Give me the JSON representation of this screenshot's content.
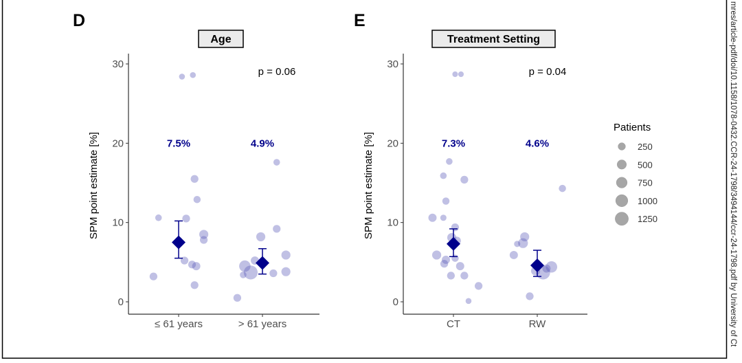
{
  "side_text": "mres/article-pdf/doi/10.1158/1078-0432.CCR-24-1798/3494144/ccr-24-1798.pdf by University of Ct",
  "colors": {
    "point": "#5a5ab8",
    "mean": "#00008B",
    "legend": "#a6a6a6"
  },
  "legend": {
    "title": "Patients",
    "sizes": [
      250,
      500,
      750,
      1000,
      1250
    ],
    "labels": [
      "250",
      "500",
      "750",
      "1000",
      "1250"
    ],
    "placement": "right"
  },
  "chart_data": [
    {
      "type": "scatter",
      "panel_letter": "D",
      "title": "Age",
      "ylabel": "SPM point estimate [%]",
      "ylim": [
        0,
        30
      ],
      "yticks": [
        "0",
        "10",
        "20",
        "30"
      ],
      "categories": [
        "≤ 61 years",
        "> 61 years"
      ],
      "p_value_text": "p = 0.06",
      "means": [
        {
          "label": "7.5%",
          "value": 7.5,
          "ci": [
            5.5,
            10.2
          ]
        },
        {
          "label": "4.9%",
          "value": 4.9,
          "ci": [
            3.5,
            6.7
          ]
        }
      ],
      "points": [
        {
          "cat": 0,
          "jitter": 0.04,
          "y": 28.4,
          "patients": 100
        },
        {
          "cat": 0,
          "jitter": 0.17,
          "y": 28.6,
          "patients": 100
        },
        {
          "cat": 0,
          "jitter": -0.24,
          "y": 10.6,
          "patients": 150
        },
        {
          "cat": 0,
          "jitter": 0.19,
          "y": 15.5,
          "patients": 250
        },
        {
          "cat": 0,
          "jitter": 0.22,
          "y": 12.9,
          "patients": 200
        },
        {
          "cat": 0,
          "jitter": 0.09,
          "y": 10.5,
          "patients": 250
        },
        {
          "cat": 0,
          "jitter": 0.3,
          "y": 8.5,
          "patients": 400
        },
        {
          "cat": 0,
          "jitter": 0.3,
          "y": 7.8,
          "patients": 250
        },
        {
          "cat": 0,
          "jitter": 0.07,
          "y": 5.2,
          "patients": 250
        },
        {
          "cat": 0,
          "jitter": 0.16,
          "y": 4.7,
          "patients": 250
        },
        {
          "cat": 0,
          "jitter": 0.21,
          "y": 4.5,
          "patients": 300
        },
        {
          "cat": 0,
          "jitter": -0.3,
          "y": 3.2,
          "patients": 250
        },
        {
          "cat": 0,
          "jitter": 0.19,
          "y": 2.1,
          "patients": 250
        },
        {
          "cat": 1,
          "jitter": 0.17,
          "y": 17.6,
          "patients": 150
        },
        {
          "cat": 1,
          "jitter": 0.17,
          "y": 9.2,
          "patients": 250
        },
        {
          "cat": 1,
          "jitter": -0.02,
          "y": 8.2,
          "patients": 400
        },
        {
          "cat": 1,
          "jitter": 0.28,
          "y": 5.9,
          "patients": 400
        },
        {
          "cat": 1,
          "jitter": -0.09,
          "y": 5.2,
          "patients": 300
        },
        {
          "cat": 1,
          "jitter": -0.21,
          "y": 4.5,
          "patients": 750
        },
        {
          "cat": 1,
          "jitter": -0.14,
          "y": 3.7,
          "patients": 1250
        },
        {
          "cat": 1,
          "jitter": -0.23,
          "y": 3.4,
          "patients": 150
        },
        {
          "cat": 1,
          "jitter": 0.13,
          "y": 3.6,
          "patients": 250
        },
        {
          "cat": 1,
          "jitter": 0.28,
          "y": 3.8,
          "patients": 400
        },
        {
          "cat": 1,
          "jitter": -0.3,
          "y": 0.5,
          "patients": 250
        }
      ]
    },
    {
      "type": "scatter",
      "panel_letter": "E",
      "title": "Treatment Setting",
      "ylabel": "SPM point estimate [%]",
      "ylim": [
        0,
        30
      ],
      "yticks": [
        "0",
        "10",
        "20",
        "30"
      ],
      "categories": [
        "CT",
        "RW"
      ],
      "p_value_text": "p = 0.04",
      "means": [
        {
          "label": "7.3%",
          "value": 7.3,
          "ci": [
            5.7,
            9.2
          ]
        },
        {
          "label": "4.6%",
          "value": 4.6,
          "ci": [
            3.2,
            6.5
          ]
        }
      ],
      "points": [
        {
          "cat": 0,
          "jitter": 0.02,
          "y": 28.7,
          "patients": 80
        },
        {
          "cat": 0,
          "jitter": 0.09,
          "y": 28.7,
          "patients": 80
        },
        {
          "cat": 0,
          "jitter": -0.05,
          "y": 17.7,
          "patients": 150
        },
        {
          "cat": 0,
          "jitter": -0.12,
          "y": 15.9,
          "patients": 150
        },
        {
          "cat": 0,
          "jitter": 0.13,
          "y": 15.4,
          "patients": 250
        },
        {
          "cat": 0,
          "jitter": -0.09,
          "y": 12.7,
          "patients": 200
        },
        {
          "cat": 0,
          "jitter": -0.25,
          "y": 10.6,
          "patients": 300
        },
        {
          "cat": 0,
          "jitter": -0.12,
          "y": 10.6,
          "patients": 120
        },
        {
          "cat": 0,
          "jitter": 0.02,
          "y": 9.4,
          "patients": 250
        },
        {
          "cat": 0,
          "jitter": -0.02,
          "y": 8.1,
          "patients": 400
        },
        {
          "cat": 0,
          "jitter": 0.04,
          "y": 7.7,
          "patients": 300
        },
        {
          "cat": 0,
          "jitter": -0.2,
          "y": 5.9,
          "patients": 400
        },
        {
          "cat": 0,
          "jitter": -0.09,
          "y": 5.3,
          "patients": 300
        },
        {
          "cat": 0,
          "jitter": -0.11,
          "y": 4.8,
          "patients": 250
        },
        {
          "cat": 0,
          "jitter": 0.02,
          "y": 5.5,
          "patients": 200
        },
        {
          "cat": 0,
          "jitter": 0.08,
          "y": 4.5,
          "patients": 300
        },
        {
          "cat": 0,
          "jitter": -0.03,
          "y": 3.3,
          "patients": 250
        },
        {
          "cat": 0,
          "jitter": 0.13,
          "y": 3.3,
          "patients": 250
        },
        {
          "cat": 0,
          "jitter": 0.3,
          "y": 2.0,
          "patients": 250
        },
        {
          "cat": 0,
          "jitter": 0.18,
          "y": 0.1,
          "patients": 100
        },
        {
          "cat": 1,
          "jitter": 0.3,
          "y": 14.3,
          "patients": 200
        },
        {
          "cat": 1,
          "jitter": -0.15,
          "y": 8.2,
          "patients": 400
        },
        {
          "cat": 1,
          "jitter": -0.17,
          "y": 7.4,
          "patients": 500
        },
        {
          "cat": 1,
          "jitter": -0.24,
          "y": 7.3,
          "patients": 120
        },
        {
          "cat": 1,
          "jitter": -0.28,
          "y": 5.9,
          "patients": 300
        },
        {
          "cat": 1,
          "jitter": 0.17,
          "y": 4.4,
          "patients": 750
        },
        {
          "cat": 1,
          "jitter": 0.11,
          "y": 4.2,
          "patients": 300
        },
        {
          "cat": 1,
          "jitter": 0.07,
          "y": 3.7,
          "patients": 1250
        },
        {
          "cat": 1,
          "jitter": -0.02,
          "y": 3.9,
          "patients": 400
        },
        {
          "cat": 1,
          "jitter": -0.09,
          "y": 0.7,
          "patients": 250
        }
      ]
    }
  ]
}
